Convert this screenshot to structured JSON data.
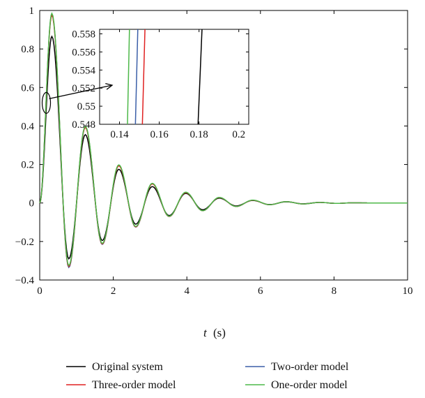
{
  "chart_data": {
    "type": "line",
    "title": "",
    "xlabel_italic": "t",
    "xlabel_unit": "(s)",
    "ylabel": "",
    "xlim": [
      0,
      10
    ],
    "ylim": [
      -0.4,
      1
    ],
    "xticks": [
      0,
      2,
      4,
      6,
      8,
      10
    ],
    "yticks": [
      -0.4,
      -0.2,
      0,
      0.2,
      0.4,
      0.6,
      0.8,
      1
    ],
    "ytick_labels": [
      "−0.4",
      "−0.2",
      "0",
      "0.2",
      "0.4",
      "0.6",
      "0.8",
      "1"
    ],
    "grid": false,
    "legend_position": "bottom, two columns, below plot",
    "series": [
      {
        "name": "Original system",
        "color": "#000000",
        "x": [
          0,
          0.33,
          0.79,
          1.24,
          1.7,
          2.15,
          2.61,
          3.06,
          3.52,
          3.97,
          4.43,
          4.88,
          5.34,
          5.79,
          6.25,
          6.7,
          7.16,
          7.61,
          8.07,
          8.52,
          9.0,
          10.0
        ],
        "y": [
          0,
          0.865,
          -0.29,
          0.355,
          -0.195,
          0.175,
          -0.11,
          0.085,
          -0.065,
          0.05,
          -0.035,
          0.025,
          -0.015,
          0.013,
          -0.008,
          0.006,
          -0.004,
          0.003,
          -0.002,
          0.001,
          0,
          0
        ]
      },
      {
        "name": "Two-order model",
        "color": "#3b5fa8",
        "x": [
          0,
          0.33,
          0.79,
          1.24,
          1.7,
          2.15,
          2.61,
          3.06,
          3.52,
          3.97,
          4.43,
          4.88,
          5.34,
          5.79,
          6.25,
          6.7,
          7.16,
          7.61,
          8.07,
          8.52,
          9.0,
          10.0
        ],
        "y": [
          0,
          0.98,
          -0.335,
          0.395,
          -0.215,
          0.195,
          -0.125,
          0.1,
          -0.07,
          0.055,
          -0.04,
          0.028,
          -0.018,
          0.014,
          -0.009,
          0.007,
          -0.005,
          0.003,
          -0.002,
          0.001,
          0,
          0
        ]
      },
      {
        "name": "Three-order model",
        "color": "#e02020",
        "x": [
          0,
          0.33,
          0.79,
          1.24,
          1.7,
          2.15,
          2.61,
          3.06,
          3.52,
          3.97,
          4.43,
          4.88,
          5.34,
          5.79,
          6.25,
          6.7,
          7.16,
          7.61,
          8.07,
          8.52,
          9.0,
          10.0
        ],
        "y": [
          0,
          0.975,
          -0.33,
          0.392,
          -0.213,
          0.193,
          -0.124,
          0.099,
          -0.07,
          0.054,
          -0.04,
          0.028,
          -0.018,
          0.014,
          -0.009,
          0.007,
          -0.005,
          0.003,
          -0.002,
          0.001,
          0,
          0
        ]
      },
      {
        "name": "One-order model",
        "color": "#4cb848",
        "x": [
          0,
          0.33,
          0.79,
          1.24,
          1.7,
          2.15,
          2.61,
          3.06,
          3.52,
          3.97,
          4.43,
          4.88,
          5.34,
          5.79,
          6.25,
          6.7,
          7.16,
          7.61,
          8.07,
          8.52,
          9.0,
          10.0
        ],
        "y": [
          0,
          0.985,
          -0.325,
          0.398,
          -0.21,
          0.198,
          -0.122,
          0.102,
          -0.069,
          0.056,
          -0.04,
          0.029,
          -0.018,
          0.015,
          -0.009,
          0.007,
          -0.005,
          0.003,
          -0.002,
          0.001,
          0,
          0
        ]
      }
    ],
    "legend_order": [
      "Original system",
      "Three-order model",
      "Two-order model",
      "One-order model"
    ],
    "inset": {
      "xlim": [
        0.13,
        0.205
      ],
      "ylim": [
        0.548,
        0.5585
      ],
      "xticks": [
        0.14,
        0.16,
        0.18,
        0.2
      ],
      "xtick_labels": [
        "0.14",
        "0.16",
        "0.18",
        "0.2"
      ],
      "yticks": [
        0.548,
        0.55,
        0.552,
        0.554,
        0.556,
        0.558
      ],
      "ytick_labels": [
        "0.548",
        "0.55",
        "0.552",
        "0.554",
        "0.556",
        "0.558"
      ],
      "lines": [
        {
          "name": "One-order model",
          "color": "#4cb848",
          "x": [
            0.144,
            0.145
          ]
        },
        {
          "name": "Two-order model",
          "color": "#3b5fa8",
          "x": [
            0.148,
            0.1492
          ]
        },
        {
          "name": "Three-order model",
          "color": "#e02020",
          "x": [
            0.1515,
            0.1528
          ]
        },
        {
          "name": "Original system",
          "color": "#000000",
          "x": [
            0.1795,
            0.1815
          ]
        }
      ],
      "highlight_ellipse_center": [
        0.18,
        0.52
      ]
    }
  }
}
